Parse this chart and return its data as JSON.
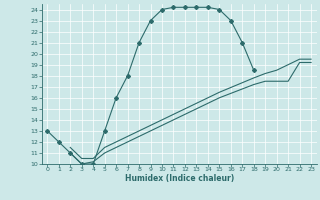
{
  "xlabel": "Humidex (Indice chaleur)",
  "bg_color": "#cde8e8",
  "line_color": "#2d6b6b",
  "xlim": [
    -0.5,
    23.5
  ],
  "ylim": [
    10,
    24.5
  ],
  "yticks": [
    10,
    11,
    12,
    13,
    14,
    15,
    16,
    17,
    18,
    19,
    20,
    21,
    22,
    23,
    24
  ],
  "xticks": [
    0,
    1,
    2,
    3,
    4,
    5,
    6,
    7,
    8,
    9,
    10,
    11,
    12,
    13,
    14,
    15,
    16,
    17,
    18,
    19,
    20,
    21,
    22,
    23
  ],
  "curve1_x": [
    0,
    1,
    2,
    3,
    4,
    5,
    6,
    7,
    8,
    9,
    10,
    11,
    12,
    13,
    14,
    15,
    16,
    17,
    18
  ],
  "curve1_y": [
    13,
    12,
    11,
    10,
    10,
    13,
    16,
    18,
    21,
    23,
    24,
    24.2,
    24.2,
    24.2,
    24.2,
    24,
    23,
    21,
    18.5
  ],
  "curve2_x": [
    2,
    3,
    4,
    5,
    10,
    15,
    18,
    19,
    20,
    21,
    22,
    23
  ],
  "curve2_y": [
    11,
    10,
    10.2,
    11,
    13.5,
    16,
    17.2,
    17.5,
    17.5,
    17.5,
    19.2,
    19.2
  ],
  "curve3_x": [
    2,
    3,
    4,
    5,
    10,
    15,
    18,
    19,
    20,
    21,
    22,
    23
  ],
  "curve3_y": [
    11.5,
    10.5,
    10.5,
    11.5,
    14,
    16.5,
    17.8,
    18.2,
    18.5,
    19,
    19.5,
    19.5
  ]
}
